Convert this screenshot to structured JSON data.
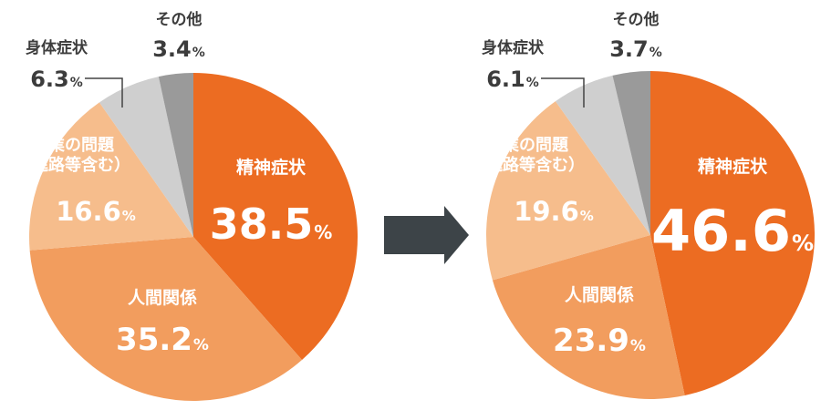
{
  "chart_data": [
    {
      "type": "pie",
      "title": "",
      "categories": [
        "精神症状",
        "人間関係",
        "学業の問題（進路等含む）",
        "身体症状",
        "その他"
      ],
      "values": [
        38.5,
        35.2,
        16.6,
        6.3,
        3.4
      ],
      "label_lines": [
        [
          "精神症状"
        ],
        [
          "人間関係"
        ],
        [
          "学業の問題",
          "（進路等含む）"
        ],
        [
          "身体症状"
        ],
        [
          "その他"
        ]
      ],
      "value_texts": [
        "38.5",
        "35.2",
        "16.6",
        "6.3",
        "3.4"
      ],
      "percent_sign": "%",
      "colors": [
        "#ec6c22",
        "#f29d5e",
        "#f6bd8c",
        "#cfcfcf",
        "#9a9a9a"
      ]
    },
    {
      "type": "pie",
      "title": "",
      "categories": [
        "精神症状",
        "人間関係",
        "学業の問題（進路等含む）",
        "身体症状",
        "その他"
      ],
      "values": [
        46.6,
        23.9,
        19.6,
        6.1,
        3.7
      ],
      "label_lines": [
        [
          "精神症状"
        ],
        [
          "人間関係"
        ],
        [
          "学業の問題",
          "（進路等含む）"
        ],
        [
          "身体症状"
        ],
        [
          "その他"
        ]
      ],
      "value_texts": [
        "46.6",
        "23.9",
        "19.6",
        "6.1",
        "3.7"
      ],
      "percent_sign": "%",
      "colors": [
        "#ec6c22",
        "#f29d5e",
        "#f6bd8c",
        "#cfcfcf",
        "#9a9a9a"
      ]
    }
  ],
  "arrow_color": "#3d4448",
  "label_dark_color": "#3c3c3c",
  "leader_color": "#444444"
}
